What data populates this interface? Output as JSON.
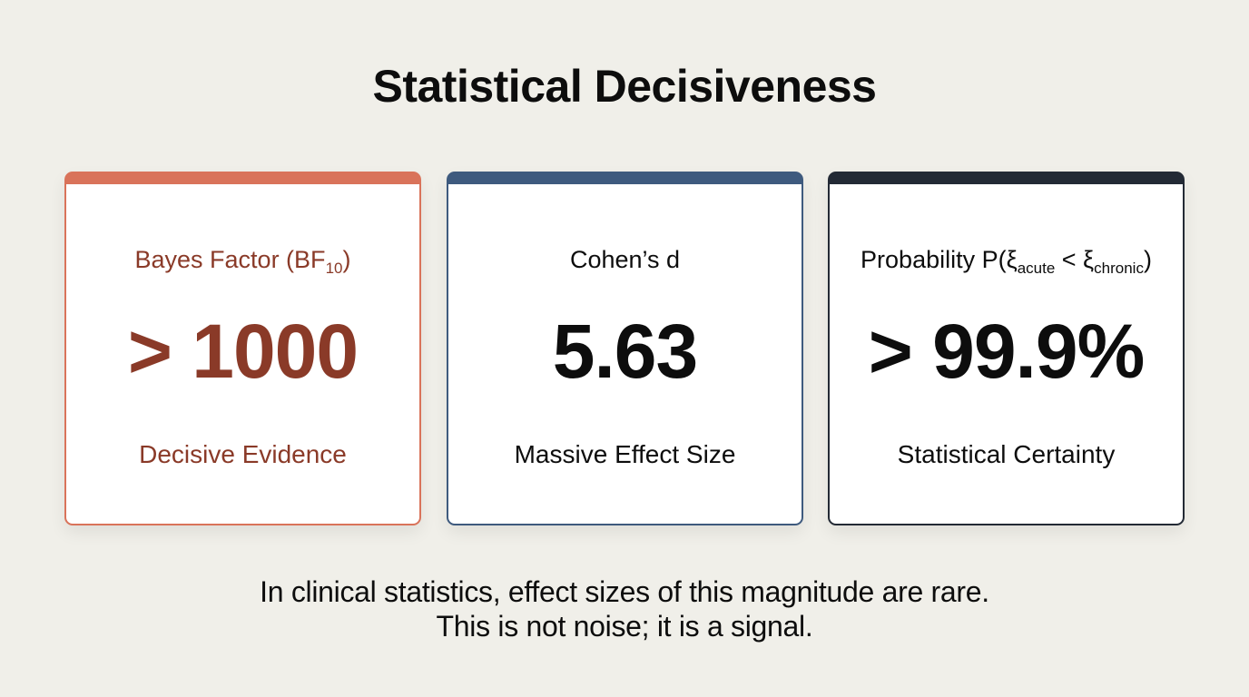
{
  "title": "Statistical Decisiveness",
  "colors": {
    "background": "#f0efe9",
    "card_1_accent": "#d9735a",
    "card_1_text": "#8a3a28",
    "card_2_accent": "#3e5a7e",
    "card_3_accent": "#232a35"
  },
  "cards": [
    {
      "label_main": "Bayes Factor (BF",
      "label_sub": "10",
      "label_tail": ")",
      "value": "> 1000",
      "description": "Decisive Evidence"
    },
    {
      "label_main": "Cohen’s d",
      "value": "5.63",
      "description": "Massive Effect Size"
    },
    {
      "label_main": "Probability P(ξ",
      "label_sub": "acute",
      "label_mid": " < ξ",
      "label_sub2": "chronic",
      "label_tail": ")",
      "value": "> 99.9%",
      "description": "Statistical Certainty"
    }
  ],
  "footnote": {
    "line_1": "In clinical statistics, effect sizes of this magnitude are rare.",
    "line_2": "This is not noise; it is a signal."
  }
}
